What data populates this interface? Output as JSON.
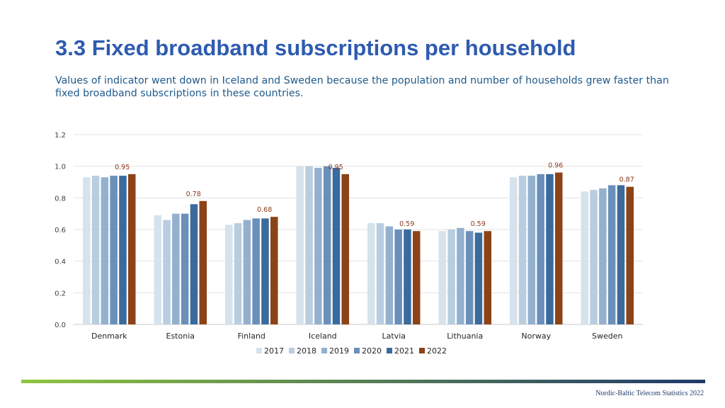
{
  "page": {
    "title": "3.3 Fixed broadband subscriptions per household",
    "subtitle": "Values of indicator went down in Iceland and Sweden because the population and number of households grew faster than fixed broadband subscriptions in these countries.",
    "footer": "Nordic-Baltic Telecom Statistics 2022"
  },
  "colors": {
    "title": "#2e5bb0",
    "subtitle": "#1f5a8c",
    "label": "#8b3a1a",
    "footer_gradient": [
      "#8dc63f",
      "#1f3a6b"
    ]
  },
  "chart_data": {
    "type": "bar",
    "title": "",
    "xlabel": "",
    "ylabel": "",
    "ylim": [
      0,
      1.2
    ],
    "yticks": [
      "0.0",
      "0.2",
      "0.4",
      "0.6",
      "0.8",
      "1.0",
      "1.2"
    ],
    "grid": true,
    "legend_position": "bottom",
    "categories": [
      "Denmark",
      "Estonia",
      "Finland",
      "Iceland",
      "Latvia",
      "Lithuania",
      "Norway",
      "Sweden"
    ],
    "series": [
      {
        "name": "2017",
        "color": "#d6e2ec",
        "values": [
          0.93,
          0.69,
          0.63,
          1.0,
          0.64,
          0.59,
          0.93,
          0.84
        ]
      },
      {
        "name": "2018",
        "color": "#b9cde0",
        "values": [
          0.94,
          0.66,
          0.64,
          1.0,
          0.64,
          0.6,
          0.94,
          0.85
        ]
      },
      {
        "name": "2019",
        "color": "#93b1cf",
        "values": [
          0.93,
          0.7,
          0.66,
          0.99,
          0.62,
          0.61,
          0.94,
          0.86
        ]
      },
      {
        "name": "2020",
        "color": "#6a90ba",
        "values": [
          0.94,
          0.7,
          0.67,
          1.0,
          0.6,
          0.59,
          0.95,
          0.88
        ]
      },
      {
        "name": "2021",
        "color": "#3b6a9c",
        "values": [
          0.94,
          0.76,
          0.67,
          0.99,
          0.6,
          0.58,
          0.95,
          0.88
        ]
      },
      {
        "name": "2022",
        "color": "#8b4317",
        "values": [
          0.95,
          0.78,
          0.68,
          0.95,
          0.59,
          0.59,
          0.96,
          0.87
        ]
      }
    ],
    "data_labels": [
      {
        "category": "Denmark",
        "series": "2022",
        "text": "0.95"
      },
      {
        "category": "Estonia",
        "series": "2022",
        "text": "0.78"
      },
      {
        "category": "Finland",
        "series": "2022",
        "text": "0.68"
      },
      {
        "category": "Iceland",
        "series": "2022",
        "text": "0.95"
      },
      {
        "category": "Latvia",
        "series": "2022",
        "text": "0.59"
      },
      {
        "category": "Lithuania",
        "series": "2022",
        "text": "0.59"
      },
      {
        "category": "Norway",
        "series": "2022",
        "text": "0.96"
      },
      {
        "category": "Sweden",
        "series": "2022",
        "text": "0.87"
      }
    ]
  }
}
